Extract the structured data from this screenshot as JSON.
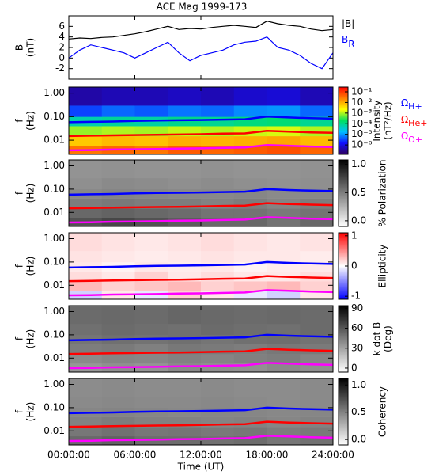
{
  "chart_data": [
    {
      "type": "line",
      "title": "ACE Mag 1999-173",
      "ylabel": [
        "B",
        "(nT)"
      ],
      "x": [
        0,
        1,
        2,
        3,
        4,
        5,
        6,
        7,
        8,
        9,
        10,
        11,
        12,
        13,
        14,
        15,
        16,
        17,
        18,
        19,
        20,
        21,
        22,
        23,
        24
      ],
      "ylim": [
        -4,
        8
      ],
      "yticks": [
        -2,
        0,
        2,
        4,
        6
      ],
      "series": [
        {
          "name": "|B|",
          "color": "#000000",
          "values": [
            3.6,
            3.8,
            3.7,
            3.9,
            4.0,
            4.3,
            4.6,
            5.0,
            5.5,
            6.0,
            5.4,
            5.6,
            5.5,
            5.8,
            6.0,
            6.2,
            6.0,
            5.8,
            7.0,
            6.5,
            6.2,
            6.0,
            5.5,
            5.2,
            5.4
          ]
        },
        {
          "name": "B",
          "name_sub": "R",
          "color": "#0000ff",
          "values": [
            0,
            1.5,
            2.5,
            2.0,
            1.5,
            1.0,
            0.0,
            1.0,
            2.0,
            3.0,
            1.0,
            -0.5,
            0.5,
            1.0,
            1.5,
            2.5,
            3.0,
            3.2,
            4.0,
            2.0,
            1.5,
            0.5,
            -1.0,
            -2.0,
            1.0
          ]
        }
      ]
    },
    {
      "type": "heatmap",
      "ylog": true,
      "ylim": [
        0.0025,
        1.8
      ],
      "ylabel": [
        "f",
        "(Hz)"
      ],
      "yticks": [
        {
          "value": 1,
          "label": "1.00"
        },
        {
          "value": 0.1,
          "label": "0.10"
        },
        {
          "value": 0.01,
          "label": "0.01"
        }
      ],
      "x_bins": [
        0,
        3,
        6,
        9,
        12,
        15,
        18,
        21,
        24
      ],
      "f_bins": [
        0.0025,
        0.006,
        0.015,
        0.04,
        0.1,
        0.3,
        1.8
      ],
      "z": [
        [
          0.03,
          0.04,
          0.03,
          0.05,
          0.04,
          0.05,
          0.06,
          0.04
        ],
        [
          0.006,
          0.008,
          0.007,
          0.01,
          0.009,
          0.01,
          0.012,
          0.008
        ],
        [
          0.0008,
          0.001,
          0.0009,
          0.0012,
          0.001,
          0.0013,
          0.0015,
          0.001
        ],
        [
          6e-05,
          8e-05,
          7e-05,
          0.0001,
          9e-05,
          0.00012,
          0.00014,
          9e-05
        ],
        [
          3e-06,
          5e-06,
          4e-06,
          6e-06,
          5e-06,
          8e-06,
          9e-06,
          5e-06
        ],
        [
          4e-07,
          5e-07,
          5e-07,
          6e-07,
          5e-07,
          7e-07,
          8e-07,
          5e-07
        ]
      ],
      "colormap": [
        "#30005a",
        "#1010ff",
        "#00bfff",
        "#00e060",
        "#ffff00",
        "#ff8000",
        "#ff0000"
      ],
      "clog": true,
      "clim": [
        1.3e-07,
        0.28
      ],
      "cticks": [
        {
          "value": 0.1,
          "label": "10⁻¹"
        },
        {
          "value": 0.01,
          "label": "10⁻²"
        },
        {
          "value": 0.001,
          "label": "10⁻³"
        },
        {
          "value": 0.0001,
          "label": "10⁻⁴"
        },
        {
          "value": 1e-05,
          "label": "10⁻⁵"
        },
        {
          "value": 1e-06,
          "label": "10⁻⁶"
        }
      ],
      "colorbar_label": [
        "Intensity",
        "(nT²/Hz)"
      ]
    },
    {
      "type": "heatmap",
      "ylog": true,
      "ylim": [
        0.0025,
        1.8
      ],
      "ylabel": [
        "f",
        "(Hz)"
      ],
      "yticks": [
        {
          "value": 1,
          "label": "1.00"
        },
        {
          "value": 0.1,
          "label": "0.10"
        },
        {
          "value": 0.01,
          "label": "0.01"
        }
      ],
      "x_bins": [
        0,
        3,
        6,
        9,
        12,
        15,
        18,
        21,
        24
      ],
      "f_bins": [
        0.0025,
        0.006,
        0.015,
        0.04,
        0.1,
        0.3,
        1.8
      ],
      "z": [
        [
          0.7,
          0.75,
          0.7,
          0.65,
          0.6,
          0.6,
          0.55,
          0.6
        ],
        [
          0.6,
          0.62,
          0.6,
          0.58,
          0.55,
          0.55,
          0.52,
          0.55
        ],
        [
          0.5,
          0.52,
          0.5,
          0.5,
          0.48,
          0.5,
          0.47,
          0.5
        ],
        [
          0.45,
          0.47,
          0.46,
          0.45,
          0.45,
          0.46,
          0.44,
          0.45
        ],
        [
          0.42,
          0.44,
          0.43,
          0.42,
          0.43,
          0.42,
          0.41,
          0.42
        ],
        [
          0.4,
          0.41,
          0.4,
          0.4,
          0.41,
          0.4,
          0.4,
          0.41
        ]
      ],
      "colormap": [
        "#ffffff",
        "#000000"
      ],
      "clog": false,
      "clim": [
        -0.1,
        1.08
      ],
      "cticks": [
        {
          "value": 1,
          "label": "1.0"
        },
        {
          "value": 0.5,
          "label": "0.5"
        },
        {
          "value": 0,
          "label": "0.0"
        }
      ],
      "colorbar_label": [
        "% Polarization"
      ]
    },
    {
      "type": "heatmap",
      "ylog": true,
      "ylim": [
        0.0025,
        1.8
      ],
      "ylabel": [
        "f",
        "(Hz)"
      ],
      "yticks": [
        {
          "value": 1,
          "label": "1.00"
        },
        {
          "value": 0.1,
          "label": "0.10"
        },
        {
          "value": 0.01,
          "label": "0.01"
        }
      ],
      "x_bins": [
        0,
        3,
        6,
        9,
        12,
        15,
        18,
        21,
        24
      ],
      "f_bins": [
        0.0025,
        0.006,
        0.015,
        0.04,
        0.1,
        0.3,
        1.8
      ],
      "z": [
        [
          -0.2,
          0.1,
          -0.1,
          0.2,
          0.1,
          -0.1,
          -0.2,
          0.1
        ],
        [
          0.3,
          0.2,
          0.25,
          0.3,
          0.2,
          0.25,
          0.3,
          0.2
        ],
        [
          0.15,
          0.1,
          0.2,
          0.1,
          0.15,
          0.1,
          0.1,
          0.15
        ],
        [
          0.1,
          0.05,
          0.1,
          0.08,
          0.1,
          0.05,
          0.08,
          0.1
        ],
        [
          0.12,
          0.1,
          0.08,
          0.1,
          0.12,
          0.1,
          0.1,
          0.08
        ],
        [
          0.15,
          0.12,
          0.1,
          0.12,
          0.15,
          0.12,
          0.1,
          0.12
        ]
      ],
      "colormap": [
        "#0000ff",
        "#ffffff",
        "#ff0000"
      ],
      "clog": false,
      "clim": [
        -1.1,
        1.1
      ],
      "cticks": [
        1,
        0,
        -1
      ],
      "colorbar_label": [
        "Ellipticity"
      ]
    },
    {
      "type": "heatmap",
      "ylog": true,
      "ylim": [
        0.0025,
        1.8
      ],
      "ylabel": [
        "f",
        "(Hz)"
      ],
      "yticks": [
        {
          "value": 1,
          "label": "1.00"
        },
        {
          "value": 0.1,
          "label": "0.10"
        },
        {
          "value": 0.01,
          "label": "0.01"
        }
      ],
      "x_bins": [
        0,
        3,
        6,
        9,
        12,
        15,
        18,
        21,
        24
      ],
      "f_bins": [
        0.0025,
        0.006,
        0.015,
        0.04,
        0.1,
        0.3,
        1.8
      ],
      "z": [
        [
          35,
          38,
          36,
          40,
          38,
          37,
          40,
          38
        ],
        [
          40,
          42,
          41,
          43,
          42,
          44,
          45,
          42
        ],
        [
          45,
          46,
          44,
          47,
          46,
          45,
          47,
          46
        ],
        [
          48,
          50,
          49,
          50,
          48,
          50,
          51,
          49
        ],
        [
          50,
          52,
          51,
          50,
          52,
          51,
          50,
          52
        ],
        [
          52,
          53,
          52,
          54,
          53,
          52,
          53,
          52
        ]
      ],
      "colormap": [
        "#ffffff",
        "#000000"
      ],
      "clog": false,
      "clim": [
        -6,
        94
      ],
      "cticks": [
        90,
        60,
        30,
        0
      ],
      "colorbar_label": [
        "k dot B",
        "(Deg)"
      ]
    },
    {
      "type": "heatmap",
      "ylog": true,
      "ylim": [
        0.0025,
        1.8
      ],
      "ylabel": [
        "f",
        "(Hz)"
      ],
      "yticks": [
        {
          "value": 1,
          "label": "1.00"
        },
        {
          "value": 0.1,
          "label": "0.10"
        },
        {
          "value": 0.01,
          "label": "0.01"
        }
      ],
      "x_bins": [
        0,
        3,
        6,
        9,
        12,
        15,
        18,
        21,
        24
      ],
      "f_bins": [
        0.0025,
        0.006,
        0.015,
        0.04,
        0.1,
        0.3,
        1.8
      ],
      "z": [
        [
          0.62,
          0.65,
          0.6,
          0.6,
          0.58,
          0.6,
          0.55,
          0.58
        ],
        [
          0.55,
          0.58,
          0.55,
          0.56,
          0.54,
          0.55,
          0.52,
          0.54
        ],
        [
          0.5,
          0.52,
          0.5,
          0.5,
          0.49,
          0.5,
          0.48,
          0.5
        ],
        [
          0.48,
          0.49,
          0.48,
          0.47,
          0.48,
          0.48,
          0.47,
          0.48
        ],
        [
          0.46,
          0.47,
          0.46,
          0.46,
          0.47,
          0.46,
          0.45,
          0.46
        ],
        [
          0.45,
          0.46,
          0.45,
          0.45,
          0.46,
          0.45,
          0.45,
          0.46
        ]
      ],
      "colormap": [
        "#ffffff",
        "#000000"
      ],
      "clog": false,
      "clim": [
        -0.1,
        1.12
      ],
      "cticks": [
        {
          "value": 1,
          "label": "1.0"
        },
        {
          "value": 0.5,
          "label": "0.5"
        },
        {
          "value": 0,
          "label": "0.0"
        }
      ],
      "colorbar_label": [
        "Coherency"
      ]
    }
  ],
  "shared": {
    "xlim": [
      0,
      24
    ],
    "xticks": [
      {
        "value": 0,
        "label": "00:00:00"
      },
      {
        "value": 6,
        "label": "06:00:00"
      },
      {
        "value": 12,
        "label": "12:00:00"
      },
      {
        "value": 18,
        "label": "18:00:00"
      },
      {
        "value": 24,
        "label": "24:00:00"
      }
    ],
    "xlabel": "Time (UT)",
    "cyclotron": {
      "x": [
        0,
        2,
        4,
        6,
        8,
        10,
        12,
        14,
        16,
        18,
        20,
        22,
        24
      ],
      "series": [
        {
          "name": "Ω",
          "name_sub": "H+",
          "color": "#0000ff",
          "values": [
            0.058,
            0.06,
            0.062,
            0.066,
            0.068,
            0.07,
            0.072,
            0.075,
            0.078,
            0.1,
            0.092,
            0.086,
            0.082
          ]
        },
        {
          "name": "Ω",
          "name_sub": "He+",
          "color": "#ff0000",
          "values": [
            0.015,
            0.0155,
            0.016,
            0.0165,
            0.017,
            0.0175,
            0.018,
            0.019,
            0.0195,
            0.025,
            0.023,
            0.0215,
            0.0205
          ]
        },
        {
          "name": "Ω",
          "name_sub": "O+",
          "color": "#ff00ff",
          "values": [
            0.0037,
            0.0038,
            0.004,
            0.0041,
            0.0042,
            0.0044,
            0.0045,
            0.0047,
            0.0049,
            0.0062,
            0.0058,
            0.0054,
            0.0051
          ]
        }
      ]
    }
  }
}
